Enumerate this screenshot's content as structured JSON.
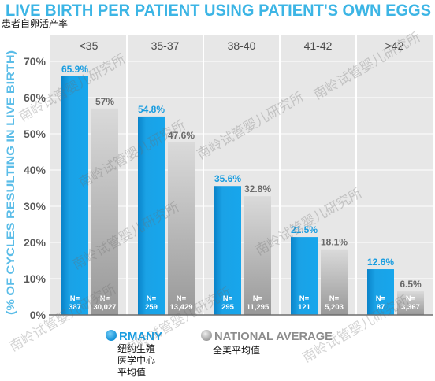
{
  "chart_data": {
    "type": "bar",
    "title": "LIVE BIRTH PER PATIENT USING PATIENT'S OWN EGGS",
    "subtitle": "患者自卵活产率",
    "ylabel": "(% OF CYCLES RESULTING IN LIVE BIRTH)",
    "categories": [
      "<35",
      "35-37",
      "38-40",
      "41-42",
      ">42"
    ],
    "ylim": [
      0,
      70
    ],
    "y_tick_values": [
      0,
      10,
      20,
      30,
      40,
      50,
      60,
      70
    ],
    "y_tick_labels": [
      "0%",
      "10%",
      "20%",
      "30%",
      "40%",
      "50%",
      "60%",
      "70%"
    ],
    "n_prefix": "N=",
    "grid": true,
    "legend": "bottom",
    "series": [
      {
        "name": "RMANY",
        "name_cn": [
          "纽约生殖",
          "医学中心",
          "平均值"
        ],
        "values": [
          65.9,
          54.8,
          35.6,
          21.5,
          12.6
        ],
        "labels": [
          "65.9%",
          "54.8%",
          "35.6%",
          "21.5%",
          "12.6%"
        ],
        "n": [
          "387",
          "259",
          "295",
          "121",
          "87"
        ],
        "color": "#1aa0e2"
      },
      {
        "name": "NATIONAL AVERAGE",
        "name_cn": [
          "全美平均值"
        ],
        "values": [
          57,
          47.6,
          32.8,
          18.1,
          6.5
        ],
        "labels": [
          "57%",
          "47.6%",
          "32.8%",
          "18.1%",
          "6.5%"
        ],
        "n": [
          "30,027",
          "13,429",
          "11,295",
          "5,203",
          "3,367"
        ],
        "color": "#a8a8a8"
      }
    ]
  },
  "watermark": "南岭试管婴儿研究所",
  "colors": {
    "title": "#3cb5e5",
    "axis_title": "#5bbde8",
    "plot_background": "#e7e7e7",
    "gridline": "#ffffff",
    "baseline": "#6e6e6e"
  }
}
